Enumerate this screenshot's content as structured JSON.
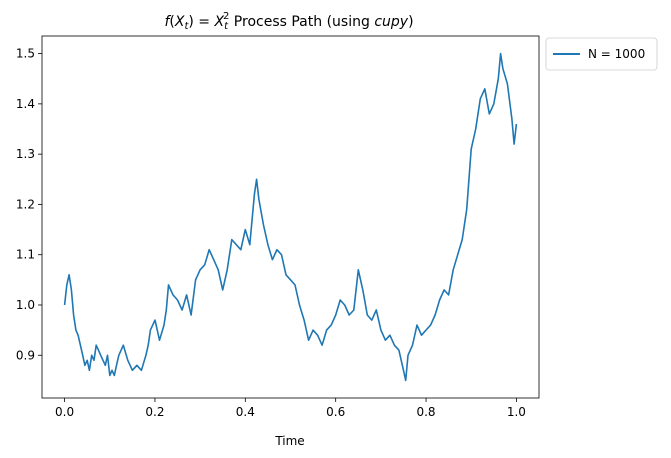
{
  "chart_data": {
    "type": "line",
    "title": "f(X_t) = X_t^2 Process Path (using cupy)",
    "title_parts": {
      "f": "f",
      "open_paren": "(",
      "X": "X",
      "sub_t": "t",
      "close_eq": ") = ",
      "X2": "X",
      "sub_t2": "t",
      "sup_2": "2",
      "rest": " Process Path (using ",
      "cupy": "cupy",
      "end": ")"
    },
    "xlabel": "Time",
    "ylabel": "",
    "xlim": [
      -0.05,
      1.05
    ],
    "ylim": [
      0.815,
      1.535
    ],
    "x_ticks": [
      0.0,
      0.2,
      0.4,
      0.6,
      0.8,
      1.0
    ],
    "x_tick_labels": [
      "0.0",
      "0.2",
      "0.4",
      "0.6",
      "0.8",
      "1.0"
    ],
    "y_ticks": [
      0.9,
      1.0,
      1.1,
      1.2,
      1.3,
      1.4,
      1.5
    ],
    "y_tick_labels": [
      "0.9",
      "1.0",
      "1.1",
      "1.2",
      "1.3",
      "1.4",
      "1.5"
    ],
    "grid": false,
    "legend_position": "outside-upper-right",
    "series": [
      {
        "name": "N = 1000",
        "color": "#1f77b4",
        "x": [
          0.0,
          0.005,
          0.01,
          0.015,
          0.02,
          0.025,
          0.03,
          0.035,
          0.04,
          0.045,
          0.05,
          0.055,
          0.06,
          0.065,
          0.07,
          0.075,
          0.08,
          0.085,
          0.09,
          0.095,
          0.1,
          0.105,
          0.11,
          0.115,
          0.12,
          0.125,
          0.13,
          0.14,
          0.15,
          0.16,
          0.17,
          0.18,
          0.185,
          0.19,
          0.2,
          0.21,
          0.22,
          0.225,
          0.23,
          0.24,
          0.25,
          0.26,
          0.27,
          0.28,
          0.29,
          0.3,
          0.31,
          0.32,
          0.33,
          0.34,
          0.35,
          0.36,
          0.37,
          0.38,
          0.39,
          0.4,
          0.41,
          0.415,
          0.42,
          0.425,
          0.43,
          0.44,
          0.45,
          0.46,
          0.47,
          0.48,
          0.49,
          0.5,
          0.51,
          0.52,
          0.53,
          0.54,
          0.55,
          0.56,
          0.57,
          0.58,
          0.59,
          0.6,
          0.61,
          0.62,
          0.63,
          0.64,
          0.65,
          0.66,
          0.67,
          0.68,
          0.69,
          0.7,
          0.71,
          0.72,
          0.73,
          0.74,
          0.75,
          0.755,
          0.76,
          0.77,
          0.78,
          0.79,
          0.8,
          0.81,
          0.82,
          0.83,
          0.84,
          0.85,
          0.86,
          0.87,
          0.88,
          0.89,
          0.9,
          0.91,
          0.92,
          0.93,
          0.94,
          0.95,
          0.96,
          0.965,
          0.97,
          0.98,
          0.99,
          0.995,
          1.0
        ],
        "values": [
          1.0,
          1.04,
          1.06,
          1.03,
          0.98,
          0.95,
          0.94,
          0.92,
          0.9,
          0.88,
          0.89,
          0.87,
          0.9,
          0.89,
          0.92,
          0.91,
          0.9,
          0.89,
          0.88,
          0.9,
          0.86,
          0.87,
          0.86,
          0.88,
          0.9,
          0.91,
          0.92,
          0.89,
          0.87,
          0.88,
          0.87,
          0.9,
          0.92,
          0.95,
          0.97,
          0.93,
          0.96,
          0.99,
          1.04,
          1.02,
          1.01,
          0.99,
          1.02,
          0.98,
          1.05,
          1.07,
          1.08,
          1.11,
          1.09,
          1.07,
          1.03,
          1.07,
          1.13,
          1.12,
          1.11,
          1.15,
          1.12,
          1.17,
          1.22,
          1.25,
          1.21,
          1.16,
          1.12,
          1.09,
          1.11,
          1.1,
          1.06,
          1.05,
          1.04,
          1.0,
          0.97,
          0.93,
          0.95,
          0.94,
          0.92,
          0.95,
          0.96,
          0.98,
          1.01,
          1.0,
          0.98,
          0.99,
          1.07,
          1.03,
          0.98,
          0.97,
          0.99,
          0.95,
          0.93,
          0.94,
          0.92,
          0.91,
          0.87,
          0.85,
          0.9,
          0.92,
          0.96,
          0.94,
          0.95,
          0.96,
          0.98,
          1.01,
          1.03,
          1.02,
          1.07,
          1.1,
          1.13,
          1.19,
          1.31,
          1.35,
          1.41,
          1.43,
          1.38,
          1.4,
          1.45,
          1.5,
          1.47,
          1.44,
          1.37,
          1.32,
          1.36
        ]
      }
    ]
  }
}
